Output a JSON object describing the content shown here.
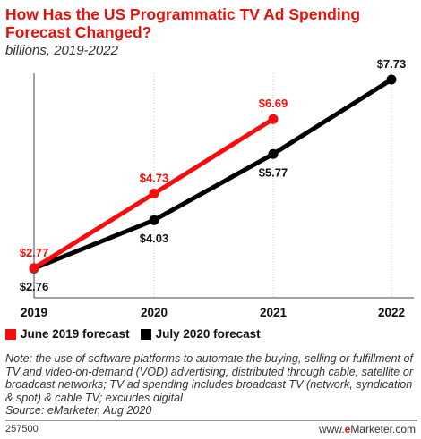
{
  "chart_data": {
    "type": "line",
    "title": "How Has the US Programmatic TV Ad Spending Forecast Changed?",
    "subtitle": "billions, 2019-2022",
    "categories": [
      "2019",
      "2020",
      "2021",
      "2022"
    ],
    "ylim": [
      2.5,
      8
    ],
    "grid": "vertical-dotted",
    "legend_placement": "bottom-left",
    "series": [
      {
        "name": "June 2019 forecast",
        "color": "#f70d0d",
        "x": [
          "2019",
          "2020",
          "2021"
        ],
        "values": [
          2.77,
          4.73,
          6.69
        ],
        "labels": [
          "$2.77",
          "$4.73",
          "$6.69"
        ],
        "label_position": "above"
      },
      {
        "name": "July 2020 forecast",
        "color": "#000000",
        "x": [
          "2019",
          "2020",
          "2021",
          "2022"
        ],
        "values": [
          2.76,
          4.03,
          5.77,
          7.73
        ],
        "labels": [
          "$2.76",
          "$4.03",
          "$5.77",
          "$7.73"
        ],
        "label_position": "below"
      }
    ]
  },
  "legend": {
    "items": [
      {
        "label": "June 2019 forecast",
        "color": "#f70d0d"
      },
      {
        "label": "July 2020 forecast",
        "color": "#000000"
      }
    ]
  },
  "note": "Note: the use of software platforms to automate the buying, selling or fulfillment of TV and video-on-demand (VOD) advertising, distributed through cable, satellite or broadcast networks; TV ad spending includes broadcast TV (network, syndication & spot) & cable TV; excludes digital",
  "source": "Source: eMarketer, Aug 2020",
  "footer": {
    "chart_id": "257500",
    "brand_prefix": "www.",
    "brand_e": "e",
    "brand_rest": "Marketer.com"
  }
}
